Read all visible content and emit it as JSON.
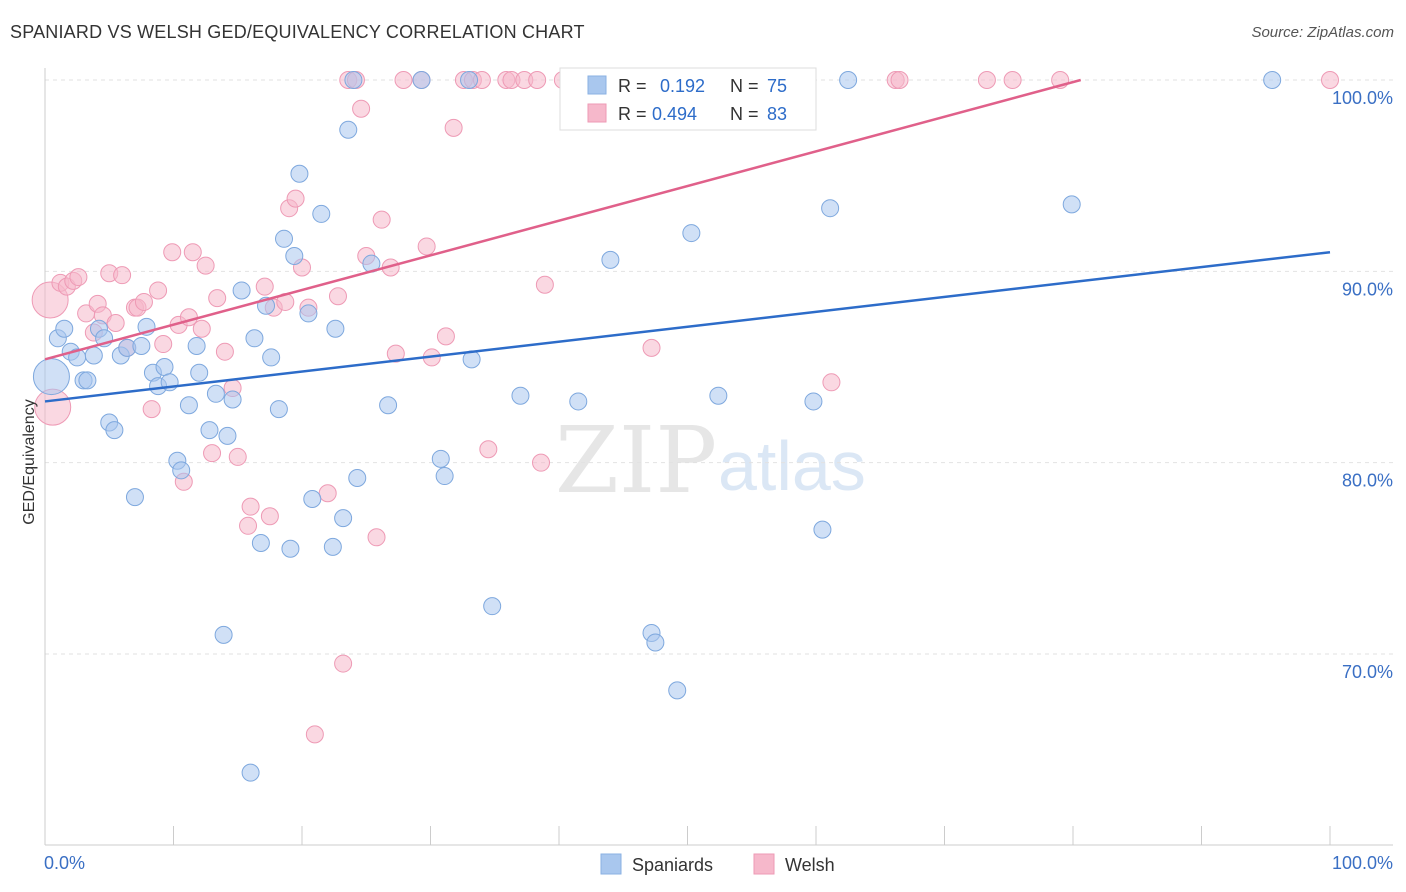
{
  "title": "SPANIARD VS WELSH GED/EQUIVALENCY CORRELATION CHART",
  "source": "Source: ZipAtlas.com",
  "watermark": {
    "zip": "ZIP",
    "atlas": "atlas"
  },
  "chart_data": {
    "type": "scatter",
    "title": "SPANIARD VS WELSH GED/EQUIVALENCY CORRELATION CHART",
    "xlabel": "",
    "ylabel": "GED/Equivalency",
    "xlim": [
      0,
      100
    ],
    "ylim": [
      59,
      101
    ],
    "x_tick_labels": [
      "0.0%",
      "100.0%"
    ],
    "y_ticks": [
      70,
      80,
      90,
      100
    ],
    "y_tick_labels": [
      "70.0%",
      "80.0%",
      "90.0%",
      "100.0%"
    ],
    "grid": true,
    "legend_position": "bottom-center",
    "colors": {
      "Spaniards": "#a9c7ee",
      "Welsh": "#f6b8cb",
      "Spaniards_line": "#2d6cc9",
      "Welsh_line": "#e0608a",
      "tick_label": "#3a6fc4"
    },
    "stats": [
      {
        "series": "Spaniards",
        "r_label": "R =",
        "r_value": "0.192",
        "n_label": "N =",
        "n_value": "75"
      },
      {
        "series": "Welsh",
        "r_label": "R =",
        "r_value": "0.494",
        "n_label": "N =",
        "n_value": "83"
      }
    ],
    "series": [
      {
        "name": "Spaniards",
        "trend": {
          "x": [
            0,
            100
          ],
          "y": [
            83.2,
            91.0
          ]
        },
        "points": [
          [
            0.5,
            84.5
          ],
          [
            1.0,
            86.5
          ],
          [
            1.5,
            87.0
          ],
          [
            2.0,
            85.8
          ],
          [
            2.5,
            85.5
          ],
          [
            3.0,
            84.3
          ],
          [
            3.3,
            84.3
          ],
          [
            3.8,
            85.6
          ],
          [
            4.2,
            87.0
          ],
          [
            4.6,
            86.5
          ],
          [
            5.0,
            82.1
          ],
          [
            5.4,
            81.7
          ],
          [
            5.9,
            85.6
          ],
          [
            6.4,
            86.0
          ],
          [
            7.0,
            78.2
          ],
          [
            7.5,
            86.1
          ],
          [
            7.9,
            87.1
          ],
          [
            8.4,
            84.7
          ],
          [
            8.8,
            84.0
          ],
          [
            9.3,
            85.0
          ],
          [
            9.7,
            84.2
          ],
          [
            10.3,
            80.1
          ],
          [
            10.6,
            79.6
          ],
          [
            11.2,
            83.0
          ],
          [
            11.8,
            86.1
          ],
          [
            12.0,
            84.7
          ],
          [
            12.8,
            81.7
          ],
          [
            13.3,
            83.6
          ],
          [
            13.9,
            71.0
          ],
          [
            14.2,
            81.4
          ],
          [
            14.6,
            83.3
          ],
          [
            15.3,
            89.0
          ],
          [
            16.0,
            63.8
          ],
          [
            16.3,
            86.5
          ],
          [
            16.8,
            75.8
          ],
          [
            17.2,
            88.2
          ],
          [
            17.6,
            85.5
          ],
          [
            18.2,
            82.8
          ],
          [
            18.6,
            91.7
          ],
          [
            19.1,
            75.5
          ],
          [
            19.4,
            90.8
          ],
          [
            19.8,
            95.1
          ],
          [
            20.5,
            87.8
          ],
          [
            20.8,
            78.1
          ],
          [
            21.5,
            93.0
          ],
          [
            22.4,
            75.6
          ],
          [
            22.6,
            87.0
          ],
          [
            23.2,
            77.1
          ],
          [
            23.6,
            97.4
          ],
          [
            24.0,
            100
          ],
          [
            24.3,
            79.2
          ],
          [
            25.4,
            90.4
          ],
          [
            26.7,
            83.0
          ],
          [
            29.3,
            100
          ],
          [
            30.8,
            80.2
          ],
          [
            31.1,
            79.3
          ],
          [
            33.0,
            100
          ],
          [
            33.2,
            85.4
          ],
          [
            34.8,
            72.5
          ],
          [
            37.0,
            83.5
          ],
          [
            41.5,
            83.2
          ],
          [
            44.0,
            90.6
          ],
          [
            45.0,
            99.0
          ],
          [
            47.2,
            71.1
          ],
          [
            47.5,
            70.6
          ],
          [
            49.2,
            68.1
          ],
          [
            49.8,
            100
          ],
          [
            50.3,
            92.0
          ],
          [
            52.4,
            83.5
          ],
          [
            59.8,
            83.2
          ],
          [
            60.5,
            76.5
          ],
          [
            61.1,
            93.3
          ],
          [
            79.9,
            93.5
          ],
          [
            95.5,
            100
          ],
          [
            62.5,
            100
          ]
        ]
      },
      {
        "name": "Welsh",
        "trend": {
          "x": [
            0,
            80.6
          ],
          "y": [
            85.4,
            100
          ]
        },
        "points": [
          [
            0.4,
            88.5
          ],
          [
            0.6,
            82.9
          ],
          [
            1.2,
            89.4
          ],
          [
            1.7,
            89.2
          ],
          [
            2.2,
            89.5
          ],
          [
            2.6,
            89.7
          ],
          [
            3.2,
            87.8
          ],
          [
            3.8,
            86.8
          ],
          [
            4.1,
            88.3
          ],
          [
            4.5,
            87.7
          ],
          [
            5.0,
            89.9
          ],
          [
            5.5,
            87.3
          ],
          [
            6.0,
            89.8
          ],
          [
            6.4,
            86.0
          ],
          [
            7.0,
            88.1
          ],
          [
            7.2,
            88.1
          ],
          [
            7.7,
            88.4
          ],
          [
            8.3,
            82.8
          ],
          [
            8.8,
            89.0
          ],
          [
            9.2,
            86.2
          ],
          [
            9.9,
            91.0
          ],
          [
            10.4,
            87.2
          ],
          [
            10.8,
            79.0
          ],
          [
            11.2,
            87.6
          ],
          [
            11.5,
            91.0
          ],
          [
            12.2,
            87.0
          ],
          [
            12.5,
            90.3
          ],
          [
            13.0,
            80.5
          ],
          [
            13.4,
            88.6
          ],
          [
            14.0,
            85.8
          ],
          [
            14.6,
            83.9
          ],
          [
            15.0,
            80.3
          ],
          [
            15.8,
            76.7
          ],
          [
            16.0,
            77.7
          ],
          [
            17.1,
            89.2
          ],
          [
            17.5,
            77.2
          ],
          [
            17.8,
            88.1
          ],
          [
            18.7,
            88.4
          ],
          [
            19.0,
            93.3
          ],
          [
            19.5,
            93.8
          ],
          [
            20.0,
            90.2
          ],
          [
            20.5,
            88.1
          ],
          [
            21.0,
            65.8
          ],
          [
            22.0,
            78.4
          ],
          [
            22.8,
            88.7
          ],
          [
            23.2,
            69.5
          ],
          [
            23.6,
            100
          ],
          [
            24.2,
            100
          ],
          [
            24.6,
            98.5
          ],
          [
            25.0,
            90.8
          ],
          [
            25.8,
            76.1
          ],
          [
            26.2,
            92.7
          ],
          [
            26.9,
            90.2
          ],
          [
            27.3,
            85.7
          ],
          [
            27.9,
            100
          ],
          [
            29.3,
            100
          ],
          [
            29.7,
            91.3
          ],
          [
            30.1,
            85.5
          ],
          [
            31.2,
            86.6
          ],
          [
            31.8,
            97.5
          ],
          [
            32.6,
            100
          ],
          [
            33.3,
            100
          ],
          [
            34.0,
            100
          ],
          [
            34.5,
            80.7
          ],
          [
            35.9,
            100
          ],
          [
            36.3,
            100
          ],
          [
            37.3,
            100
          ],
          [
            38.3,
            100
          ],
          [
            38.6,
            80.0
          ],
          [
            38.9,
            89.3
          ],
          [
            40.3,
            100
          ],
          [
            41.7,
            100
          ],
          [
            43.2,
            100
          ],
          [
            47.2,
            86.0
          ],
          [
            49.9,
            100
          ],
          [
            56.7,
            100
          ],
          [
            61.2,
            84.2
          ],
          [
            66.2,
            100
          ],
          [
            66.5,
            100
          ],
          [
            73.3,
            100
          ],
          [
            75.3,
            100
          ],
          [
            79.0,
            100
          ],
          [
            100.0,
            100
          ]
        ]
      }
    ]
  },
  "legend": {
    "items": [
      {
        "label": "Spaniards"
      },
      {
        "label": "Welsh"
      }
    ]
  }
}
